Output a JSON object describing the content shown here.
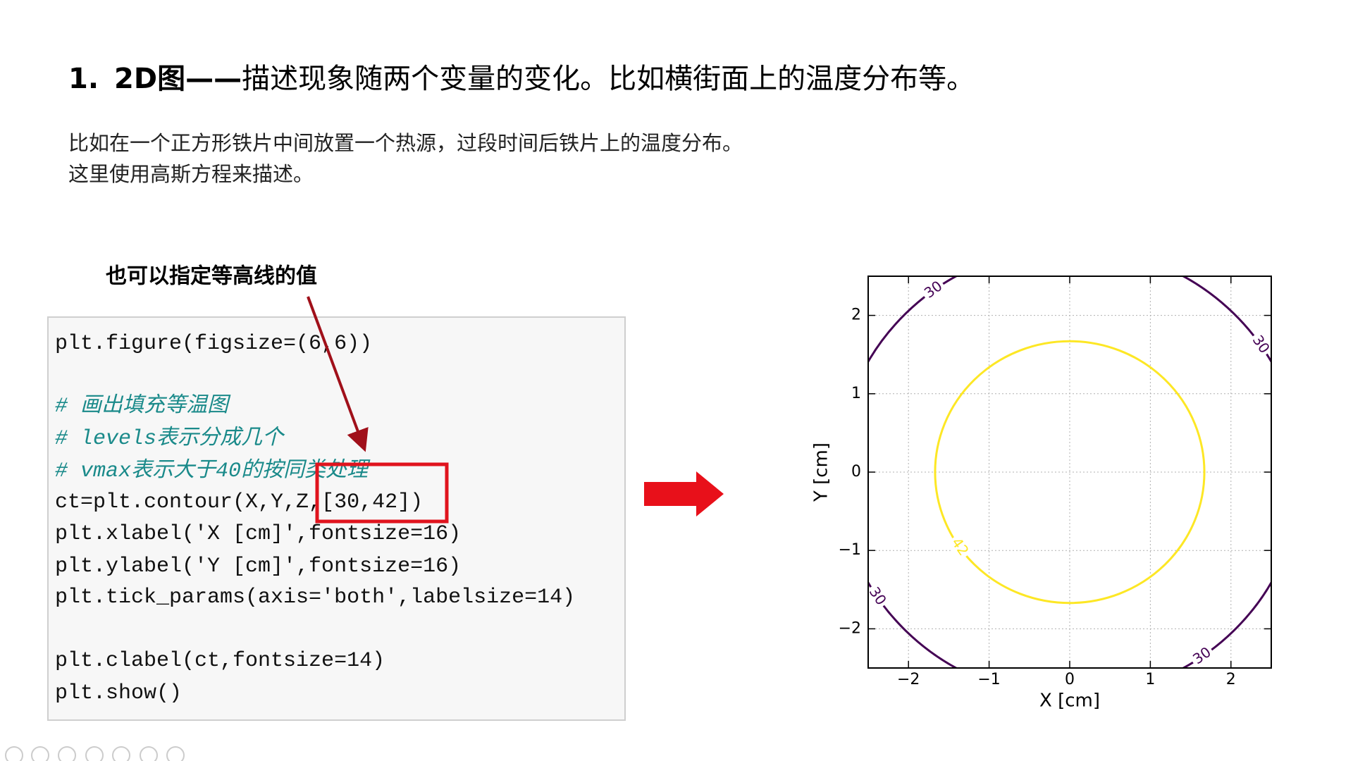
{
  "slide": {
    "title": {
      "number": "1.",
      "bold": "2D图——",
      "text": "描述现象随两个变量的变化。比如横街面上的温度分布等。"
    },
    "paragraph": [
      "比如在一个正方形铁片中间放置一个热源，过段时间后铁片上的温度分布。",
      "这里使用高斯方程来描述。"
    ],
    "annotation": "也可以指定等高线的值",
    "code": [
      "plt.figure(figsize=(6,6))",
      "# 画出填充等温图",
      "# levels表示分成几个",
      "# vmax表示大于40的按同类处理",
      "ct=plt.contour(X,Y,Z,[30,42])",
      "plt.xlabel('X [cm]',fontsize=16)",
      "plt.ylabel('Y [cm]',fontsize=16)",
      "plt.tick_params(axis='both',labelsize=14)",
      "plt.clabel(ct,fontsize=14)",
      "plt.show()"
    ],
    "plot": {
      "type": "contour",
      "xlabel": "X [cm]",
      "ylabel": "Y [cm]",
      "xlim": [
        -2.5,
        2.5
      ],
      "ylim": [
        -2.5,
        2.5
      ],
      "xticks": [
        {
          "value": -2,
          "label": "−2"
        },
        {
          "value": -1,
          "label": "−1"
        },
        0,
        1,
        2
      ],
      "yticks": [
        {
          "value": -2,
          "label": "−2"
        },
        {
          "value": -1,
          "label": "−1"
        },
        0,
        1,
        2
      ],
      "grid": true,
      "levels": [
        30,
        42
      ],
      "radii": [
        2.87,
        1.67
      ],
      "colors": [
        "#440154",
        "#fde725"
      ]
    }
  }
}
